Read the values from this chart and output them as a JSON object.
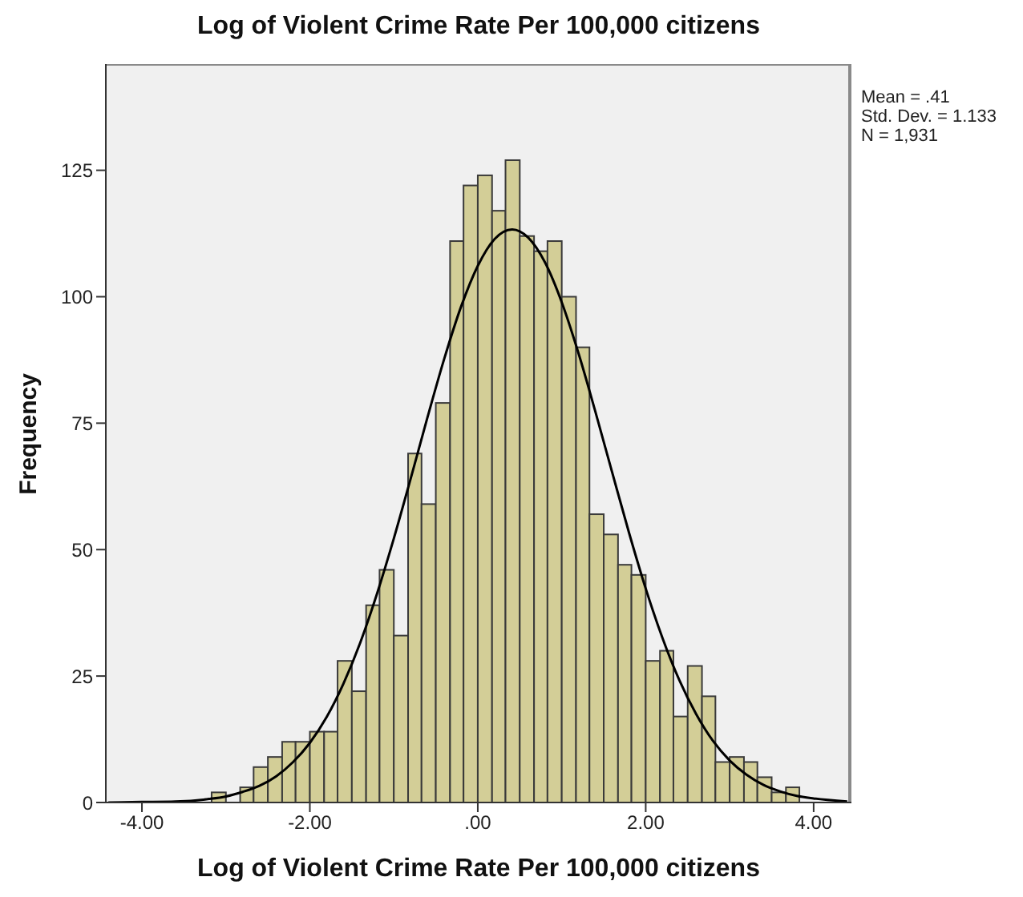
{
  "chart_data": {
    "type": "histogram",
    "title": "Log of Violent Crime Rate Per 100,000 citizens",
    "xlabel": "Log of Violent Crime Rate Per 100,000 citizens",
    "ylabel": "Frequency",
    "annotations": [
      "Mean = .41",
      "Std. Dev. = 1.133",
      "N = 1,931"
    ],
    "xlim": [
      -4.43,
      4.45
    ],
    "xticks": [
      {
        "value": -4,
        "label": "-4.00"
      },
      {
        "value": -2,
        "label": "-2.00"
      },
      {
        "value": 0,
        "label": ".00"
      },
      {
        "value": 2,
        "label": "2.00"
      },
      {
        "value": 4,
        "label": "4.00"
      }
    ],
    "ylim": [
      0,
      146
    ],
    "yticks": [
      0,
      25,
      50,
      75,
      100,
      125
    ],
    "series": [
      {
        "color": "#d3ce97",
        "bins": [
          -3.17,
          -3.0,
          -2.83,
          -2.67,
          -2.5,
          -2.33,
          -2.17,
          -2.0,
          -1.83,
          -1.67,
          -1.5,
          -1.33,
          -1.17,
          -1.0,
          -0.83,
          -0.67,
          -0.5,
          -0.33,
          -0.17,
          0,
          0.17,
          0.33,
          0.5,
          0.67,
          0.83,
          1,
          1.17,
          1.33,
          1.5,
          1.67,
          1.83,
          2,
          2.17,
          2.33,
          2.5,
          2.67,
          2.83,
          3,
          3.17,
          3.33,
          3.5,
          3.67,
          3.83
        ],
        "values": [
          2,
          0,
          3,
          7,
          9,
          12,
          12,
          14,
          14,
          28,
          22,
          39,
          46,
          33,
          69,
          59,
          79,
          111,
          122,
          124,
          117,
          127,
          112,
          109,
          111,
          100,
          90,
          57,
          53,
          47,
          45,
          28,
          30,
          17,
          27,
          21,
          8,
          9,
          8,
          5,
          2,
          3
        ]
      },
      {
        "type": "line",
        "color": "#000000",
        "marker": "none",
        "x": [
          -4.4,
          -4,
          -3.6,
          -3.2,
          -3,
          -2.8,
          -2.6,
          -2.4,
          -2.2,
          -2,
          -1.8,
          -1.6,
          -1.4,
          -1.2,
          -1,
          -0.8,
          -0.6,
          -0.4,
          -0.2,
          0,
          0.2,
          0.41,
          0.6,
          0.8,
          1,
          1.2,
          1.4,
          1.6,
          1.8,
          2,
          2.2,
          2.4,
          2.6,
          2.8,
          3,
          3.2,
          3.4,
          3.6,
          3.8,
          4,
          4.4
        ],
        "values": [
          0,
          0.1,
          0.2,
          0.7,
          1.2,
          2.1,
          3.3,
          5.2,
          8,
          11.8,
          16.9,
          23.5,
          31.6,
          41.3,
          52.2,
          64,
          76.1,
          87.7,
          98,
          106.1,
          111.4,
          113.3,
          111.7,
          106.8,
          98.9,
          88.8,
          77.3,
          65.3,
          53.4,
          42.3,
          32.5,
          24.2,
          17.5,
          12.2,
          8.3,
          5.5,
          3.5,
          2.2,
          1.3,
          0.8,
          0.2
        ]
      }
    ]
  }
}
